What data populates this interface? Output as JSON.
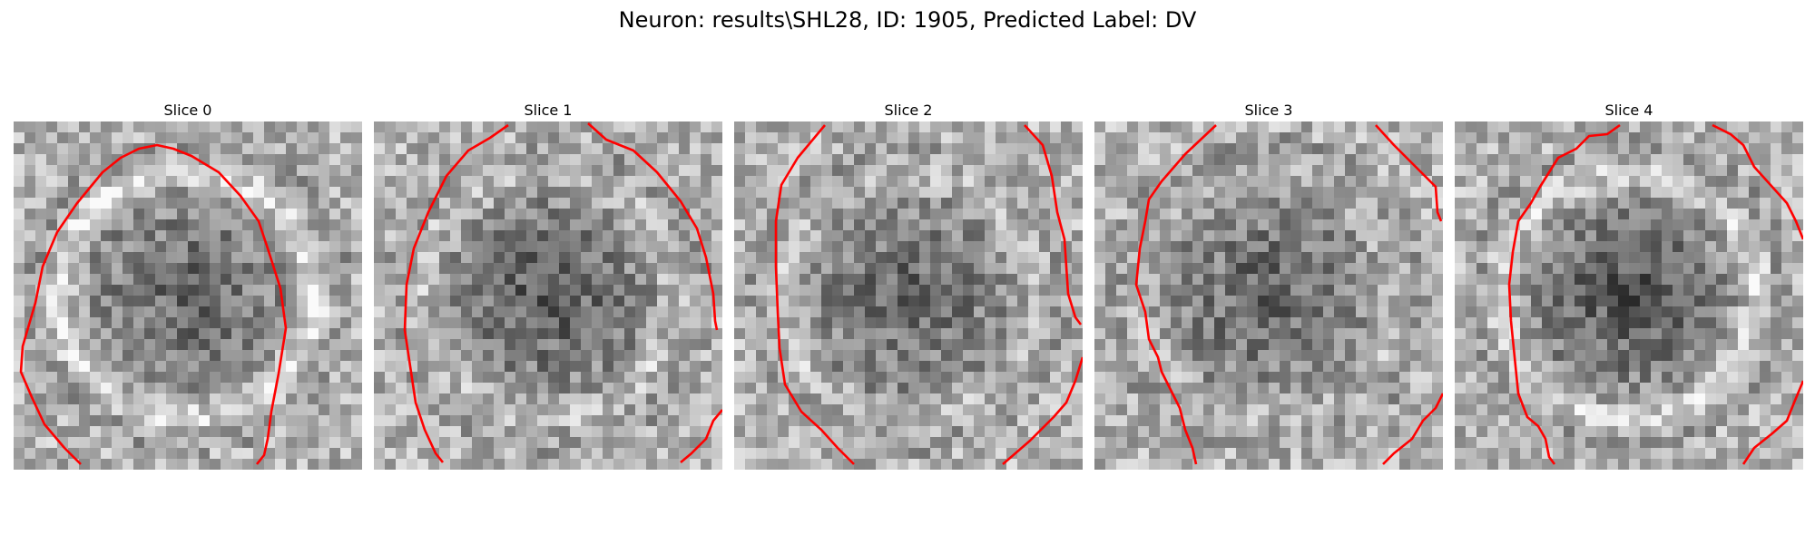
{
  "figure": {
    "title": "Neuron: results\\SHL28, ID: 1905, Predicted Label: DV"
  },
  "slices": [
    {
      "label": "Slice 0",
      "seed": 11,
      "center": 0.52,
      "ring": 1.0,
      "darkness": 0.55
    },
    {
      "label": "Slice 1",
      "seed": 23,
      "center": 0.62,
      "ring": 0.55,
      "darkness": 0.7
    },
    {
      "label": "Slice 2",
      "seed": 37,
      "center": 0.55,
      "ring": 0.5,
      "darkness": 0.55
    },
    {
      "label": "Slice 3",
      "seed": 41,
      "center": 0.58,
      "ring": 0.35,
      "darkness": 0.6
    },
    {
      "label": "Slice 4",
      "seed": 53,
      "center": 0.75,
      "ring": 0.85,
      "darkness": 0.8
    }
  ],
  "colors": {
    "contour": "#ff0000",
    "background": "#ffffff"
  }
}
